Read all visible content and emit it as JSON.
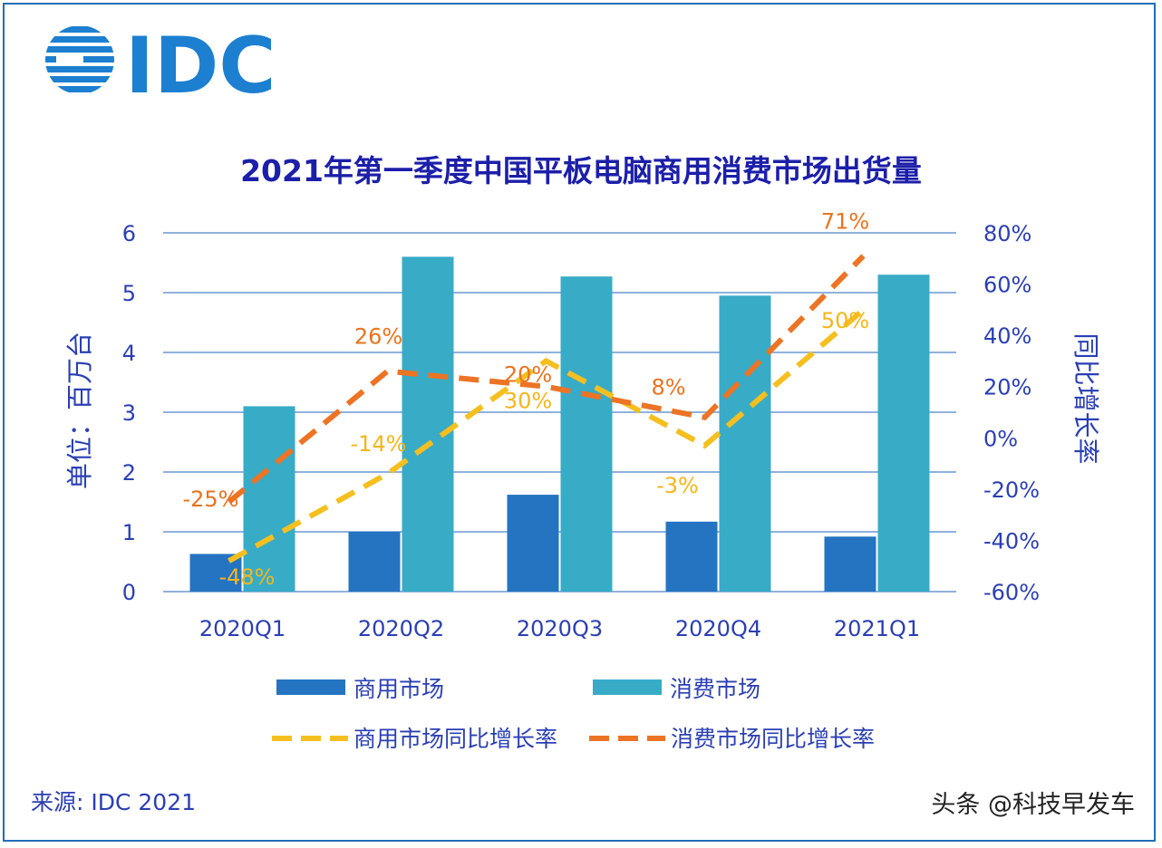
{
  "logo": {
    "text": "IDC",
    "color": "#1c7fd0"
  },
  "source": "来源: IDC 2021",
  "watermark": "头条 @科技早发车",
  "chart_data": {
    "type": "bar",
    "title": "2021年第一季度中国平板电脑商用消费市场出货量",
    "categories": [
      "2020Q1",
      "2020Q2",
      "2020Q3",
      "2020Q4",
      "2021Q1"
    ],
    "ylabel": "单位：百万台",
    "y2label": "同比增长率",
    "ylim": [
      0,
      6
    ],
    "yticks": [
      "0",
      "1",
      "2",
      "3",
      "4",
      "5",
      "6"
    ],
    "y2lim": [
      -60,
      80
    ],
    "y2ticks": [
      "-60%",
      "-40%",
      "-20%",
      "0%",
      "20%",
      "40%",
      "60%",
      "80%"
    ],
    "grid": true,
    "legend_position": "bottom",
    "series": [
      {
        "name": "商用市场",
        "type": "bar",
        "axis": "left",
        "color": "#2474c1",
        "values": [
          0.63,
          1.0,
          1.62,
          1.17,
          0.92
        ]
      },
      {
        "name": "消费市场",
        "type": "bar",
        "axis": "left",
        "color": "#38abc7",
        "values": [
          3.1,
          5.6,
          5.27,
          4.95,
          5.3
        ]
      },
      {
        "name": "商用市场同比增长率",
        "type": "line",
        "dashed": true,
        "axis": "right",
        "color": "#f5bf1f",
        "values": [
          -48,
          -14,
          30,
          -3,
          50
        ],
        "labels": [
          "-48%",
          "-14%",
          "30%",
          "-3%",
          "50%"
        ]
      },
      {
        "name": "消费市场同比增长率",
        "type": "line",
        "dashed": true,
        "axis": "right",
        "color": "#ec7424",
        "values": [
          -25,
          26,
          20,
          8,
          71
        ],
        "labels": [
          "-25%",
          "26%",
          "20%",
          "8%",
          "71%"
        ]
      }
    ]
  }
}
